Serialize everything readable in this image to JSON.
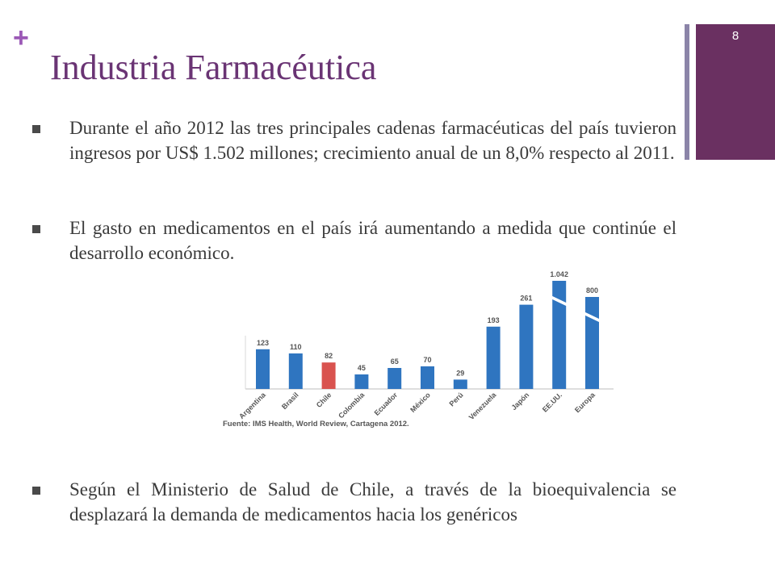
{
  "slide": {
    "plus": "+",
    "title": "Industria Farmacéutica",
    "number": "8"
  },
  "bullets": [
    "Durante el año 2012 las tres principales cadenas farmacéuticas del país tuvieron ingresos por US$ 1.502 millones; crecimiento anual de un 8,0% respecto al 2011.",
    "El gasto en medicamentos en el país irá aumentando a medida que continúe el desarrollo económico.",
    "Según el Ministerio de Salud de Chile, a través de la bioequivalencia se desplazará la demanda de medicamentos hacia los genéricos"
  ],
  "colors": {
    "accent": "#6a3474",
    "plus": "#9b59b6",
    "side_block": "#6a3061",
    "bar_default": "#2f75c0",
    "bar_highlight": "#d9534f"
  },
  "chart_data": {
    "type": "bar",
    "categories": [
      "Argentina",
      "Brasil",
      "Chile",
      "Colombia",
      "Ecuador",
      "México",
      "Perú",
      "Venezuela",
      "Japón",
      "EE.UU.",
      "Europa"
    ],
    "values": [
      123,
      110,
      82,
      45,
      65,
      70,
      29,
      193,
      261,
      1042,
      800
    ],
    "data_labels": [
      "123",
      "110",
      "82",
      "45",
      "65",
      "70",
      "29",
      "193",
      "261",
      "1.042",
      "800"
    ],
    "highlight": "Chile",
    "broken_axis_categories": [
      "EE.UU.",
      "Europa"
    ],
    "source": "Fuente: IMS Health, World Review, Cartagena 2012."
  }
}
